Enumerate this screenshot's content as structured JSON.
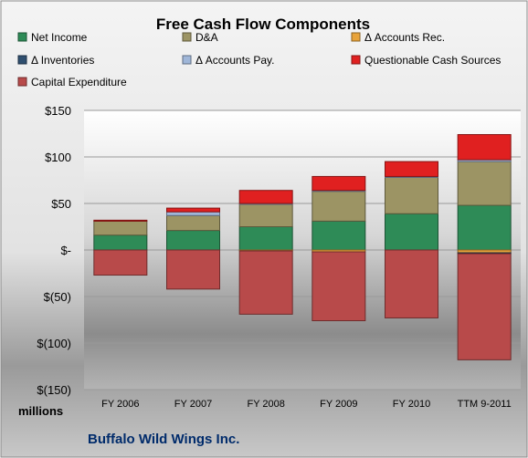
{
  "chart_data": {
    "type": "bar",
    "stacked": true,
    "title": "Free Cash Flow Components",
    "subtitle": "Buffalo Wild Wings Inc.",
    "ylabel": "",
    "xlabel": "",
    "unit_label": "millions",
    "categories": [
      "FY 2006",
      "FY 2007",
      "FY 2008",
      "FY 2009",
      "FY 2010",
      "TTM 9-2011"
    ],
    "ylim": [
      -150,
      150
    ],
    "yticks": [
      150,
      100,
      50,
      0,
      -50,
      -100,
      -150
    ],
    "ytick_labels": [
      "$150",
      "$100",
      "$50",
      "$-",
      "$(50)",
      "$(100)",
      "$(150)"
    ],
    "grid": true,
    "legend_position": "top",
    "series": [
      {
        "name": "Net Income",
        "color": "#2e8b57",
        "values": [
          16,
          21,
          25,
          31,
          39,
          48
        ]
      },
      {
        "name": "D&A",
        "color": "#9c9464",
        "values": [
          15,
          16,
          24,
          32,
          39,
          47
        ]
      },
      {
        "name": "Δ Accounts Rec.",
        "color": "#e8a33a",
        "values": [
          0,
          0,
          -1,
          -2,
          0,
          -3
        ]
      },
      {
        "name": "Δ Inventories",
        "color": "#2f4f6f",
        "values": [
          0,
          0,
          0,
          0,
          0,
          -1
        ]
      },
      {
        "name": "Δ Accounts Pay.",
        "color": "#9fb6d8",
        "values": [
          0,
          4,
          1,
          1,
          1,
          2
        ]
      },
      {
        "name": "Questionable Cash Sources",
        "color": "#e02020",
        "values": [
          1,
          4,
          14,
          15,
          16,
          27
        ]
      },
      {
        "name": "Capital Expenditure",
        "color": "#b84a4a",
        "values": [
          -27,
          -42,
          -68,
          -74,
          -73,
          -114
        ]
      }
    ]
  }
}
